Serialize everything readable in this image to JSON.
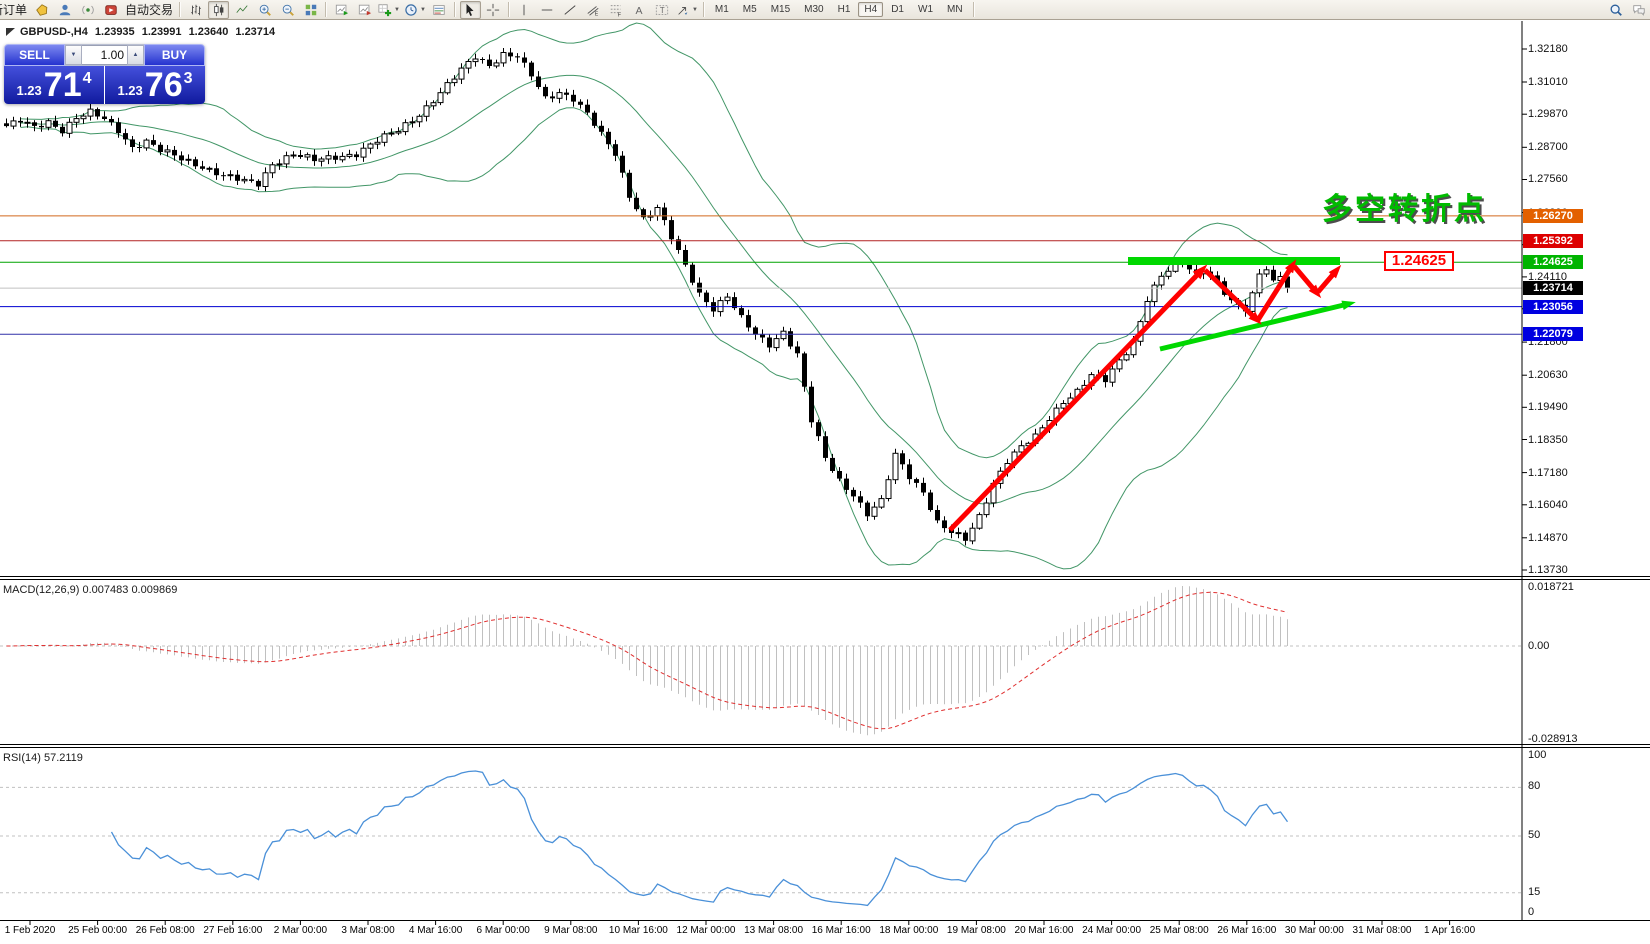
{
  "toolbar": {
    "new_order_label": "新订单",
    "autotrade_label": "自动交易",
    "items": [
      {
        "kind": "label",
        "name": "new-order-button",
        "bind": "toolbar.new_order_label",
        "clip": true
      },
      {
        "kind": "icon",
        "name": "new-order-icon",
        "icon": "tag"
      },
      {
        "kind": "icon",
        "name": "community-user-icon",
        "icon": "person"
      },
      {
        "kind": "icon",
        "name": "signal-icon",
        "icon": "signal"
      },
      {
        "kind": "icon",
        "name": "autotrade-icon",
        "icon": "autotrade"
      },
      {
        "kind": "label",
        "name": "autotrade-button",
        "bind": "toolbar.autotrade_label"
      },
      {
        "kind": "sep"
      },
      {
        "kind": "icon",
        "name": "bar-chart-button",
        "icon": "bars"
      },
      {
        "kind": "icon",
        "name": "candlestick-chart-button",
        "icon": "candles",
        "active": true
      },
      {
        "kind": "icon",
        "name": "line-chart-button",
        "icon": "linechart"
      },
      {
        "kind": "icon",
        "name": "zoom-in-button",
        "icon": "zoomin"
      },
      {
        "kind": "icon",
        "name": "zoom-out-button",
        "icon": "zoomout"
      },
      {
        "kind": "icon",
        "name": "tile-windows-button",
        "icon": "tiles"
      },
      {
        "kind": "sep"
      },
      {
        "kind": "icon",
        "name": "new-chart-button",
        "icon": "chartgreen"
      },
      {
        "kind": "icon",
        "name": "profiles-button",
        "icon": "chartred"
      },
      {
        "kind": "icon",
        "name": "indicators-button",
        "icon": "addind",
        "dropdown": true
      },
      {
        "kind": "icon",
        "name": "periods-button",
        "icon": "clock",
        "dropdown": true
      },
      {
        "kind": "icon",
        "name": "templates-button",
        "icon": "template"
      },
      {
        "kind": "sep"
      },
      {
        "kind": "icon",
        "name": "cursor-button",
        "icon": "cursor",
        "active": true
      },
      {
        "kind": "icon",
        "name": "crosshair-button",
        "icon": "crosshair"
      },
      {
        "kind": "sep"
      },
      {
        "kind": "icon",
        "name": "vertical-line-button",
        "icon": "vline"
      },
      {
        "kind": "icon",
        "name": "horizontal-line-button",
        "icon": "hline"
      },
      {
        "kind": "icon",
        "name": "trendline-button",
        "icon": "trend"
      },
      {
        "kind": "icon",
        "name": "equidistant-channel-button",
        "icon": "channel"
      },
      {
        "kind": "icon",
        "name": "fibonacci-button",
        "icon": "fibo"
      },
      {
        "kind": "icon",
        "name": "text-button",
        "icon": "textA"
      },
      {
        "kind": "icon",
        "name": "text-label-button",
        "icon": "textT"
      },
      {
        "kind": "icon",
        "name": "shapes-button",
        "icon": "shapes",
        "dropdown": true
      },
      {
        "kind": "sep"
      },
      {
        "kind": "tf",
        "name": "timeframe-m1",
        "label": "M1"
      },
      {
        "kind": "tf",
        "name": "timeframe-m5",
        "label": "M5"
      },
      {
        "kind": "tf",
        "name": "timeframe-m15",
        "label": "M15"
      },
      {
        "kind": "tf",
        "name": "timeframe-m30",
        "label": "M30"
      },
      {
        "kind": "tf",
        "name": "timeframe-h1",
        "label": "H1"
      },
      {
        "kind": "tf",
        "name": "timeframe-h4",
        "label": "H4",
        "active": true
      },
      {
        "kind": "tf",
        "name": "timeframe-d1",
        "label": "D1"
      },
      {
        "kind": "tf",
        "name": "timeframe-w1",
        "label": "W1"
      },
      {
        "kind": "tf",
        "name": "timeframe-mn",
        "label": "MN"
      },
      {
        "kind": "sep"
      },
      {
        "kind": "spacer"
      },
      {
        "kind": "icon",
        "name": "search-icon",
        "icon": "search"
      },
      {
        "kind": "icon",
        "name": "chat-icon",
        "icon": "chat"
      }
    ]
  },
  "chart_header": {
    "symbol": "GBPUSD-,H4",
    "open": "1.23935",
    "high": "1.23991",
    "low": "1.23640",
    "close": "1.23714"
  },
  "trade_panel": {
    "sell_label": "SELL",
    "buy_label": "BUY",
    "volume": "1.00",
    "sell_price": {
      "small": "1.23",
      "big": "71",
      "sup": "4"
    },
    "buy_price": {
      "small": "1.23",
      "big": "76",
      "sup": "3"
    }
  },
  "annotations": {
    "turning_point_text": "多空转折点",
    "level_box_text": "1.24625"
  },
  "chart_data": [
    {
      "type": "candlestick",
      "symbol": "GBPUSD",
      "timeframe": "H4",
      "candle_count": 184,
      "y_axis": {
        "price_max": 1.3218,
        "price_min": 1.1373,
        "ticks": [
          "1.32180",
          "1.31010",
          "1.29870",
          "1.28700",
          "1.27560",
          "1.26390",
          "1.25250",
          "1.24110",
          "1.22980",
          "1.21800",
          "1.20630",
          "1.19490",
          "1.18350",
          "1.17180",
          "1.16040",
          "1.14870",
          "1.13730"
        ]
      },
      "close_waypoints": [
        [
          0,
          1.2945
        ],
        [
          2,
          1.2962
        ],
        [
          4,
          1.2938
        ],
        [
          6,
          1.296
        ],
        [
          8,
          1.2932
        ],
        [
          10,
          1.2975
        ],
        [
          12,
          1.2992
        ],
        [
          14,
          1.2968
        ],
        [
          16,
          1.293
        ],
        [
          18,
          1.287
        ],
        [
          20,
          1.2892
        ],
        [
          22,
          1.2858
        ],
        [
          25,
          1.2828
        ],
        [
          28,
          1.2802
        ],
        [
          31,
          1.277
        ],
        [
          34,
          1.2748
        ],
        [
          36,
          1.274
        ],
        [
          38,
          1.2812
        ],
        [
          41,
          1.2846
        ],
        [
          44,
          1.2822
        ],
        [
          47,
          1.2836
        ],
        [
          50,
          1.2848
        ],
        [
          53,
          1.2892
        ],
        [
          56,
          1.293
        ],
        [
          59,
          1.2988
        ],
        [
          62,
          1.3062
        ],
        [
          65,
          1.3142
        ],
        [
          67,
          1.3192
        ],
        [
          69,
          1.3162
        ],
        [
          71,
          1.32
        ],
        [
          73,
          1.319
        ],
        [
          75,
          1.3122
        ],
        [
          77,
          1.3042
        ],
        [
          79,
          1.3066
        ],
        [
          81,
          1.3044
        ],
        [
          83,
          1.2988
        ],
        [
          85,
          1.2912
        ],
        [
          87,
          1.2845
        ],
        [
          89,
          1.27
        ],
        [
          91,
          1.2618
        ],
        [
          93,
          1.2655
        ],
        [
          95,
          1.2548
        ],
        [
          97,
          1.2448
        ],
        [
          99,
          1.2352
        ],
        [
          101,
          1.23
        ],
        [
          103,
          1.2342
        ],
        [
          105,
          1.2262
        ],
        [
          107,
          1.2205
        ],
        [
          109,
          1.2172
        ],
        [
          111,
          1.2218
        ],
        [
          113,
          1.2135
        ],
        [
          115,
          1.19
        ],
        [
          117,
          1.1768
        ],
        [
          119,
          1.169
        ],
        [
          121,
          1.1642
        ],
        [
          123,
          1.1572
        ],
        [
          125,
          1.1615
        ],
        [
          127,
          1.1778
        ],
        [
          129,
          1.1705
        ],
        [
          131,
          1.1652
        ],
        [
          133,
          1.1542
        ],
        [
          135,
          1.1505
        ],
        [
          137,
          1.1478
        ],
        [
          139,
          1.1562
        ],
        [
          141,
          1.1682
        ],
        [
          143,
          1.1762
        ],
        [
          145,
          1.1808
        ],
        [
          147,
          1.1842
        ],
        [
          149,
          1.1908
        ],
        [
          151,
          1.1972
        ],
        [
          153,
          1.2008
        ],
        [
          155,
          1.2062
        ],
        [
          157,
          1.2042
        ],
        [
          159,
          1.2112
        ],
        [
          161,
          1.218
        ],
        [
          163,
          1.2335
        ],
        [
          165,
          1.2415
        ],
        [
          167,
          1.2448
        ],
        [
          168,
          1.2458
        ],
        [
          170,
          1.2415
        ],
        [
          171,
          1.2442
        ],
        [
          173,
          1.2395
        ],
        [
          175,
          1.2322
        ],
        [
          177,
          1.2292
        ],
        [
          178,
          1.2342
        ],
        [
          179,
          1.242
        ],
        [
          180,
          1.2442
        ],
        [
          181,
          1.2392
        ],
        [
          182,
          1.2422
        ],
        [
          183,
          1.23714
        ]
      ],
      "overlays": {
        "bollinger": {
          "period": 20,
          "deviation": 2,
          "color": "#2e8b57"
        }
      },
      "levels": [
        {
          "price": 1.2627,
          "color": "#d2691e",
          "badge": "#e36000",
          "label": "1.26270"
        },
        {
          "price": 1.25392,
          "color": "#b22222",
          "badge": "#dd0000",
          "label": "1.25392"
        },
        {
          "price": 1.24625,
          "color": "#00a400",
          "badge": "#00b400",
          "label": "1.24625"
        },
        {
          "price": 1.23714,
          "color": "#c0c0c0",
          "badge": "#000000",
          "label": "1.23714"
        },
        {
          "price": 1.23056,
          "color": "#0000d0",
          "badge": "#0000e0",
          "label": "1.23056"
        },
        {
          "price": 1.22079,
          "color": "#3030a8",
          "badge": "#0000e0",
          "label": "1.22079"
        }
      ],
      "x_labels": [
        "1 Feb 2020",
        "25 Feb 00:00",
        "26 Feb 08:00",
        "27 Feb 16:00",
        "2 Mar 00:00",
        "3 Mar 08:00",
        "4 Mar 16:00",
        "6 Mar 00:00",
        "9 Mar 08:00",
        "10 Mar 16:00",
        "12 Mar 00:00",
        "13 Mar 08:00",
        "16 Mar 16:00",
        "18 Mar 00:00",
        "19 Mar 08:00",
        "20 Mar 16:00",
        "24 Mar 00:00",
        "25 Mar 08:00",
        "26 Mar 16:00",
        "30 Mar 00:00",
        "31 Mar 08:00",
        "1 Apr 16:00"
      ]
    },
    {
      "type": "macd-histogram",
      "label": "MACD(12,26,9)",
      "fast": 12,
      "slow": 26,
      "signal": 9,
      "value_main": "0.007483",
      "value_signal": "0.009869",
      "scale": {
        "top": "0.018721",
        "zero": "0.00",
        "bottom": "-0.028913"
      },
      "histogram_color": "#c0c0c0",
      "signal_color": "#e03030"
    },
    {
      "type": "line",
      "label": "RSI(14)",
      "period": 14,
      "value": "57.2119",
      "line_color": "#4a90d8",
      "levels": [
        80,
        50,
        15
      ],
      "scale_labels": [
        "100",
        "80",
        "50",
        "15",
        "0"
      ],
      "range": [
        0,
        100
      ]
    }
  ]
}
